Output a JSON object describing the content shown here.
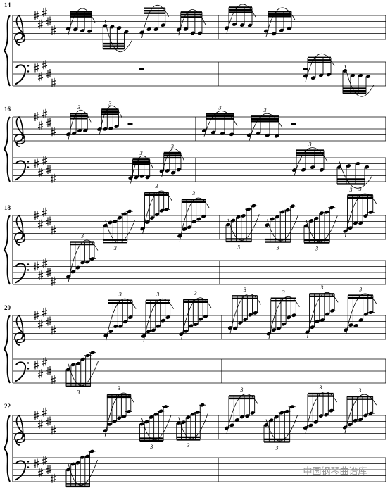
{
  "systems": [
    {
      "measure_number": "14"
    },
    {
      "measure_number": "16"
    },
    {
      "measure_number": "18"
    },
    {
      "measure_number": "20"
    },
    {
      "measure_number": "22"
    }
  ],
  "tuplet_label": "3",
  "watermark": "中国钢琴曲谱库"
}
